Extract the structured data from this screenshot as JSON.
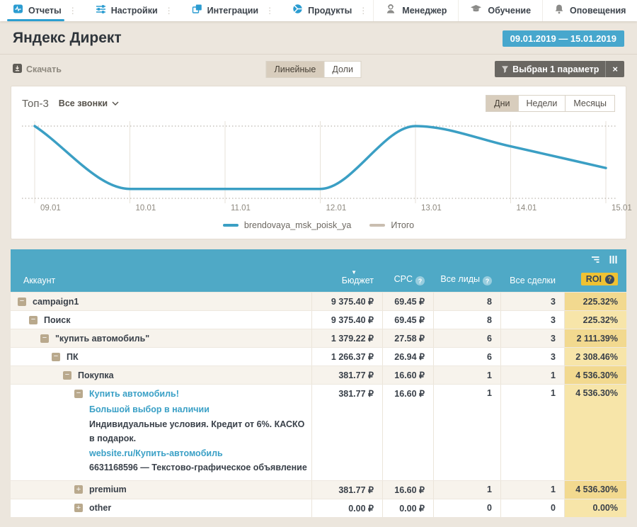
{
  "nav": {
    "tabs": [
      {
        "label": "Отчеты",
        "icon": "reports-icon",
        "active": true
      },
      {
        "label": "Настройки",
        "icon": "settings-icon",
        "active": false
      },
      {
        "label": "Интеграции",
        "icon": "integrations-icon",
        "active": false
      },
      {
        "label": "Продукты",
        "icon": "products-icon",
        "active": false
      }
    ],
    "items_right": [
      {
        "label": "Менеджер",
        "icon": "manager-icon"
      },
      {
        "label": "Обучение",
        "icon": "education-icon"
      },
      {
        "label": "Оповещения",
        "icon": "bell-icon"
      }
    ]
  },
  "header": {
    "title": "Яндекс Директ",
    "date_range": "09.01.2019 — 15.01.2019"
  },
  "toolbar": {
    "download_label": "Скачать",
    "view_options": [
      {
        "label": "Линейные",
        "selected": true
      },
      {
        "label": "Доли",
        "selected": false
      }
    ],
    "filter_label": "Выбран 1 параметр",
    "filter_close_label": "×"
  },
  "chart_card": {
    "title": "Топ-3",
    "metric_selector_value": "Все звонки",
    "period_options": [
      {
        "label": "Дни",
        "selected": true
      },
      {
        "label": "Недели",
        "selected": false
      },
      {
        "label": "Месяцы",
        "selected": false
      }
    ],
    "legend": [
      {
        "label": "brendovaya_msk_poisk_ya",
        "color": "#3b9fc4"
      },
      {
        "label": "Итого",
        "color": "#c9beb0"
      }
    ]
  },
  "chart_data": {
    "type": "line",
    "title": "Топ-3",
    "x": [
      "09.01",
      "10.01",
      "11.01",
      "12.01",
      "13.01",
      "14.01",
      "15.01"
    ],
    "series": [
      {
        "name": "brendovaya_msk_poisk_ya",
        "color": "#3b9fc4",
        "values": [
          100,
          13,
          13,
          13,
          100,
          72,
          42
        ]
      }
    ],
    "xlabel": "",
    "ylabel": "",
    "ylim": [
      0,
      100
    ],
    "grid": "vertical day gridlines, dotted top and bottom bounds",
    "legend_position": "bottom"
  },
  "table": {
    "columns": [
      {
        "label": "Аккаунт",
        "align": "left"
      },
      {
        "label": "Бюджет",
        "align": "right",
        "sorted": "desc"
      },
      {
        "label": "CPC",
        "align": "right",
        "help": true
      },
      {
        "label": "Все лиды",
        "align": "right",
        "help": true
      },
      {
        "label": "Все сделки",
        "align": "right"
      },
      {
        "label": "ROI",
        "align": "right",
        "help": true,
        "highlight": "#efc233"
      }
    ],
    "header_icons": [
      "sort-rows-icon",
      "columns-icon"
    ],
    "rows": [
      {
        "label": "campaign1",
        "level": 0,
        "toggle": "minus",
        "budget": "9 375.40 ₽",
        "cpc": "69.45 ₽",
        "leads": "8",
        "deals": "3",
        "roi": "225.32%"
      },
      {
        "label": "Поиск",
        "level": 1,
        "toggle": "minus",
        "budget": "9 375.40 ₽",
        "cpc": "69.45 ₽",
        "leads": "8",
        "deals": "3",
        "roi": "225.32%"
      },
      {
        "label": "\"купить автомобиль\"",
        "level": 2,
        "toggle": "minus",
        "budget": "1 379.22 ₽",
        "cpc": "27.58 ₽",
        "leads": "6",
        "deals": "3",
        "roi": "2 111.39%"
      },
      {
        "label": "ПК",
        "level": 3,
        "toggle": "minus",
        "budget": "1 266.37 ₽",
        "cpc": "26.94 ₽",
        "leads": "6",
        "deals": "3",
        "roi": "2 308.46%"
      },
      {
        "label": "Покупка",
        "level": 4,
        "toggle": "minus",
        "budget": "381.77 ₽",
        "cpc": "16.60 ₽",
        "leads": "1",
        "deals": "1",
        "roi": "4 536.30%"
      },
      {
        "label": "Купить автомобиль!",
        "level": 5,
        "toggle": "minus",
        "link": true,
        "budget": "381.77 ₽",
        "cpc": "16.60 ₽",
        "leads": "1",
        "deals": "1",
        "roi": "4 536.30%",
        "details": [
          {
            "text": "Большой выбор в наличии",
            "kind": "link"
          },
          {
            "text": "Индивидуальные условия. Кредит от 6%. КАСКО в подарок.",
            "kind": "text"
          },
          {
            "text": "website.ru/Купить-автомобиль",
            "kind": "link"
          },
          {
            "text": "6631168596 — Текстово-графическое объявление",
            "kind": "text"
          }
        ]
      },
      {
        "label": "premium",
        "level": 5,
        "toggle": "plus",
        "budget": "381.77 ₽",
        "cpc": "16.60 ₽",
        "leads": "1",
        "deals": "1",
        "roi": "4 536.30%"
      },
      {
        "label": "other",
        "level": 5,
        "toggle": "plus",
        "budget": "0.00 ₽",
        "cpc": "0.00 ₽",
        "leads": "0",
        "deals": "0",
        "roi": "0.00%"
      }
    ]
  },
  "colors": {
    "accent_blue": "#2d9fd0",
    "table_header_blue": "#4fa9c6",
    "date_badge_blue": "#47a7cd",
    "roi_highlight": "#efc233",
    "row_alt_beige": "#f7f3ec",
    "link_blue": "#3aa0c6",
    "page_background": "#ece6dd"
  }
}
